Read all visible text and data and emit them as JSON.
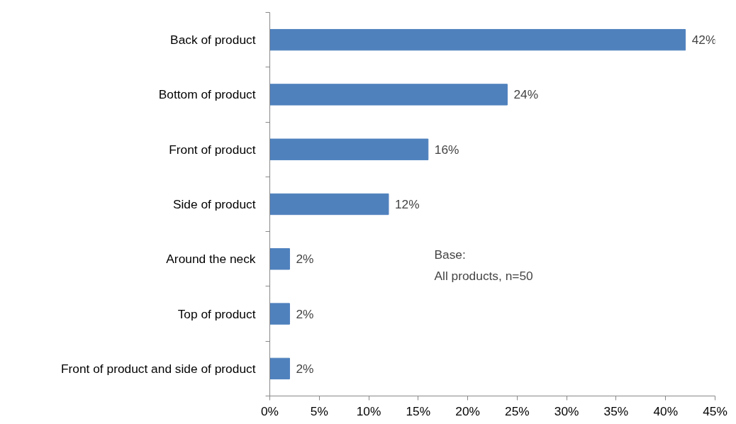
{
  "chart_data": {
    "type": "bar",
    "orientation": "horizontal",
    "categories": [
      "Back of product",
      "Bottom of product",
      "Front of product",
      "Side of product",
      "Around the neck",
      "Top of product",
      "Front of product and side of product"
    ],
    "values": [
      42,
      24,
      16,
      12,
      2,
      2,
      2
    ],
    "value_labels": [
      "42%",
      "24%",
      "16%",
      "12%",
      "2%",
      "2%",
      "2%"
    ],
    "color": "#4f81bd",
    "xlim": [
      0,
      45
    ],
    "xticks": [
      {
        "value": 0,
        "label": "0%"
      },
      {
        "value": 5,
        "label": "5%"
      },
      {
        "value": 10,
        "label": "10%"
      },
      {
        "value": 15,
        "label": "15%"
      },
      {
        "value": 20,
        "label": "20%"
      },
      {
        "value": 25,
        "label": "25%"
      },
      {
        "value": 30,
        "label": "30%"
      },
      {
        "value": 35,
        "label": "35%"
      },
      {
        "value": 40,
        "label": "40%"
      },
      {
        "value": 45,
        "label": "45%"
      }
    ],
    "annotations": [
      "Base:",
      "All products, n=50"
    ]
  }
}
